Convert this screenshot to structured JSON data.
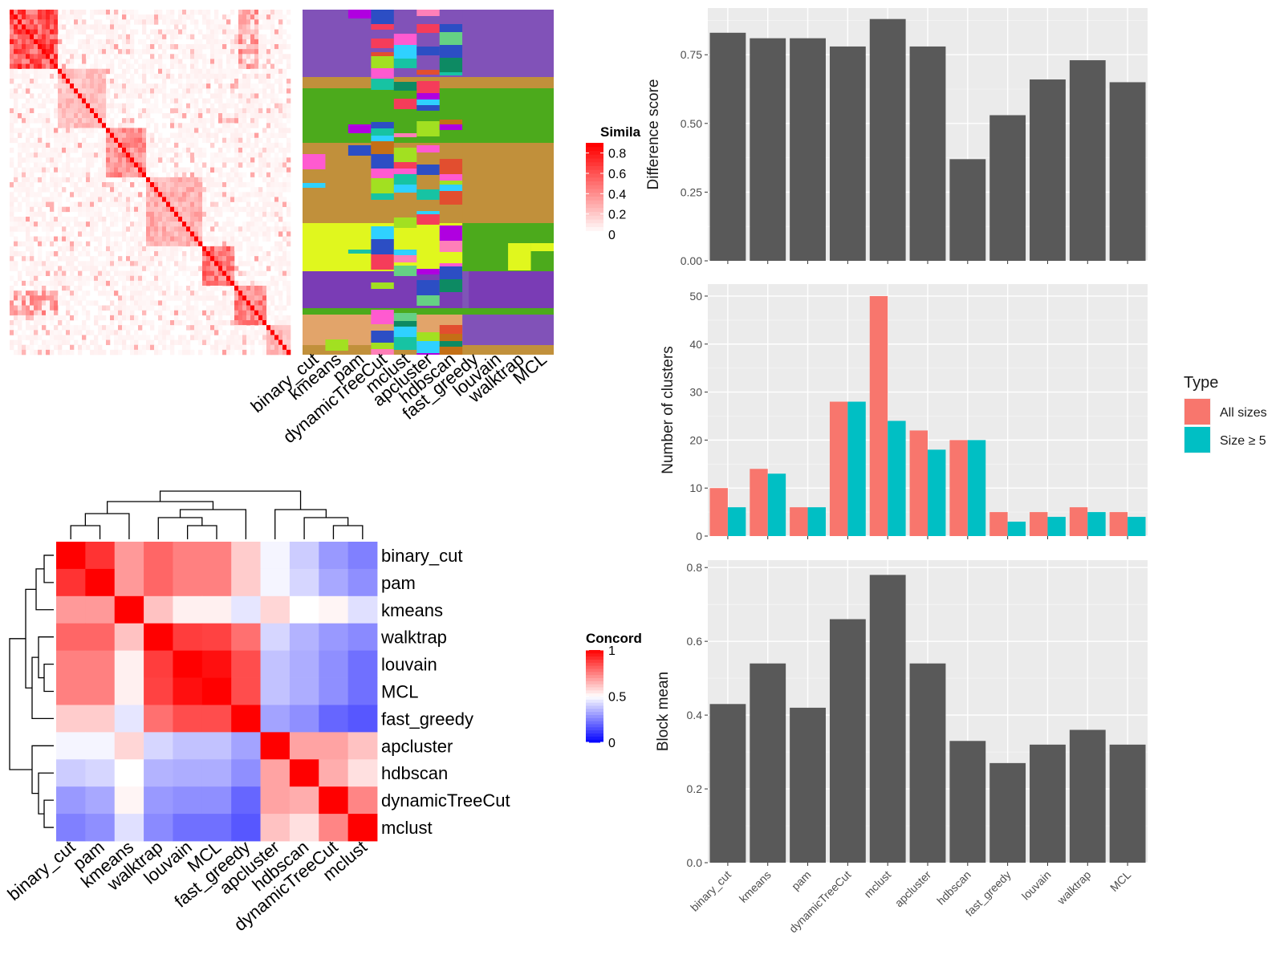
{
  "chart_data": [
    {
      "type": "heatmap",
      "panel": "similarity-matrix",
      "legend_title": "Simila",
      "legend_ticks": [
        "0",
        "0.2",
        "0.4",
        "0.6",
        "0.8"
      ],
      "colors": {
        "low": "#ffffff",
        "high": "#ff0000"
      }
    },
    {
      "type": "heatmap",
      "panel": "cluster-labels",
      "methods": [
        "binary_cut",
        "kmeans",
        "pam",
        "dynamicTreeCut",
        "mclust",
        "apcluster",
        "hdbscan",
        "fast_greedy",
        "louvain",
        "walktrap",
        "MCL"
      ]
    },
    {
      "type": "heatmap",
      "panel": "concordance-matrix",
      "legend_title": "Concord",
      "legend_ticks": [
        "0",
        "0.5",
        "1"
      ],
      "colors": {
        "low": "#0000ff",
        "mid": "#ffffff",
        "high": "#ff0000"
      },
      "row_labels": [
        "binary_cut",
        "pam",
        "kmeans",
        "walktrap",
        "louvain",
        "MCL",
        "fast_greedy",
        "apcluster",
        "hdbscan",
        "dynamicTreeCut",
        "mclust"
      ],
      "col_labels": [
        "binary_cut",
        "pam",
        "kmeans",
        "walktrap",
        "louvain",
        "MCL",
        "fast_greedy",
        "apcluster",
        "hdbscan",
        "dynamicTreeCut",
        "mclust"
      ],
      "values": [
        [
          1.0,
          0.9,
          0.7,
          0.8,
          0.75,
          0.75,
          0.6,
          0.48,
          0.4,
          0.3,
          0.25
        ],
        [
          0.9,
          1.0,
          0.7,
          0.8,
          0.75,
          0.75,
          0.6,
          0.48,
          0.42,
          0.33,
          0.28
        ],
        [
          0.7,
          0.7,
          1.0,
          0.62,
          0.53,
          0.53,
          0.45,
          0.58,
          0.5,
          0.52,
          0.44
        ],
        [
          0.8,
          0.8,
          0.62,
          1.0,
          0.88,
          0.87,
          0.78,
          0.42,
          0.35,
          0.3,
          0.27
        ],
        [
          0.75,
          0.75,
          0.53,
          0.88,
          1.0,
          0.97,
          0.85,
          0.38,
          0.34,
          0.28,
          0.22
        ],
        [
          0.75,
          0.75,
          0.53,
          0.87,
          0.97,
          1.0,
          0.85,
          0.38,
          0.34,
          0.28,
          0.22
        ],
        [
          0.6,
          0.6,
          0.45,
          0.78,
          0.85,
          0.85,
          1.0,
          0.32,
          0.28,
          0.2,
          0.17
        ],
        [
          0.48,
          0.48,
          0.58,
          0.42,
          0.38,
          0.38,
          0.32,
          1.0,
          0.68,
          0.68,
          0.62
        ],
        [
          0.4,
          0.42,
          0.5,
          0.35,
          0.34,
          0.34,
          0.28,
          0.68,
          1.0,
          0.66,
          0.56
        ],
        [
          0.3,
          0.33,
          0.52,
          0.3,
          0.28,
          0.28,
          0.2,
          0.68,
          0.66,
          1.0,
          0.74
        ],
        [
          0.25,
          0.28,
          0.44,
          0.27,
          0.22,
          0.22,
          0.17,
          0.62,
          0.56,
          0.74,
          1.0
        ]
      ]
    },
    {
      "type": "bar",
      "panel": "difference-score",
      "categories": [
        "binary_cut",
        "kmeans",
        "pam",
        "dynamicTreeCut",
        "mclust",
        "apcluster",
        "hdbscan",
        "fast_greedy",
        "louvain",
        "walktrap",
        "MCL"
      ],
      "values": [
        0.83,
        0.81,
        0.81,
        0.78,
        0.88,
        0.78,
        0.37,
        0.53,
        0.66,
        0.73,
        0.65
      ],
      "ylabel": "Difference score",
      "ylim": [
        0,
        0.92
      ],
      "yticks": [
        "0.00",
        "0.25",
        "0.50",
        "0.75"
      ],
      "bar_color": "#595959",
      "grid": true
    },
    {
      "type": "bar",
      "panel": "number-of-clusters",
      "categories": [
        "binary_cut",
        "kmeans",
        "pam",
        "dynamicTreeCut",
        "mclust",
        "apcluster",
        "hdbscan",
        "fast_greedy",
        "louvain",
        "walktrap",
        "MCL"
      ],
      "series": [
        {
          "name": "All sizes",
          "values": [
            10,
            14,
            6,
            28,
            50,
            22,
            20,
            5,
            5,
            6,
            5
          ],
          "color": "#f8766d"
        },
        {
          "name": "Size ≥ 5",
          "values": [
            6,
            13,
            6,
            28,
            24,
            18,
            20,
            3,
            4,
            5,
            4
          ],
          "color": "#00bfc4"
        }
      ],
      "ylabel": "Number of clusters",
      "ylim": [
        0,
        52.5
      ],
      "yticks": [
        "0",
        "10",
        "20",
        "30",
        "40",
        "50"
      ],
      "legend_title": "Type",
      "legend_position": "right",
      "grid": true
    },
    {
      "type": "bar",
      "panel": "block-mean",
      "categories": [
        "binary_cut",
        "kmeans",
        "pam",
        "dynamicTreeCut",
        "mclust",
        "apcluster",
        "hdbscan",
        "fast_greedy",
        "louvain",
        "walktrap",
        "MCL"
      ],
      "values": [
        0.43,
        0.54,
        0.42,
        0.66,
        0.78,
        0.54,
        0.33,
        0.27,
        0.32,
        0.36,
        0.32
      ],
      "ylabel": "Block mean",
      "ylim": [
        0,
        0.82
      ],
      "yticks": [
        "0.0",
        "0.2",
        "0.4",
        "0.6",
        "0.8"
      ],
      "bar_color": "#595959",
      "grid": true
    }
  ]
}
